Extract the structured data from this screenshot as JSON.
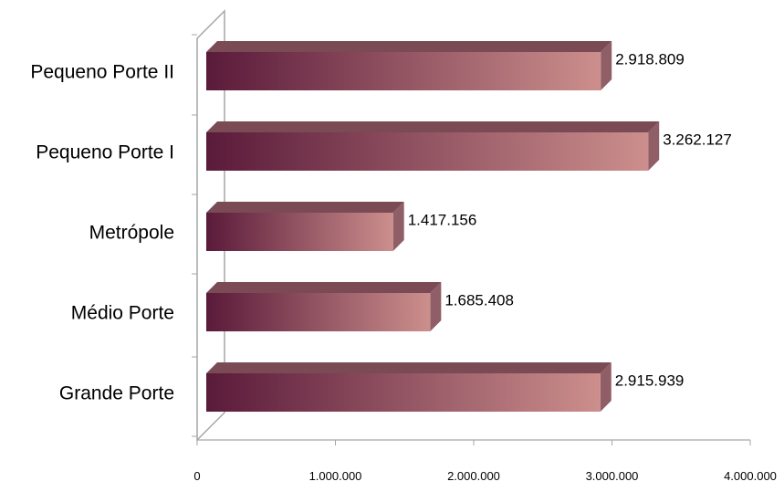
{
  "chart_data": {
    "type": "bar",
    "orientation": "horizontal",
    "categories": [
      "Pequeno Porte II",
      "Pequeno Porte I",
      "Metrópole",
      "Médio Porte",
      "Grande Porte"
    ],
    "values": [
      2918809,
      3262127,
      1417156,
      1685408,
      2915939
    ],
    "value_labels": [
      "2.918.809",
      "3.262.127",
      "1.417.156",
      "1.685.408",
      "2.915.939"
    ],
    "x_ticks": [
      0,
      1000000,
      2000000,
      3000000,
      4000000
    ],
    "x_tick_labels": [
      "0",
      "1.000.000",
      "2.000.000",
      "3.000.000",
      "4.000.000"
    ],
    "xlim": [
      0,
      4000000
    ],
    "title": "",
    "xlabel": "",
    "ylabel": "",
    "grid": false,
    "legend": "none",
    "colors": {
      "bar_dark": "#5a1a3a",
      "bar_light": "#cc8f8c",
      "bar_top": "#7a4a55",
      "bar_side": "#8f5e66",
      "axis": "#a6a6a6"
    }
  }
}
